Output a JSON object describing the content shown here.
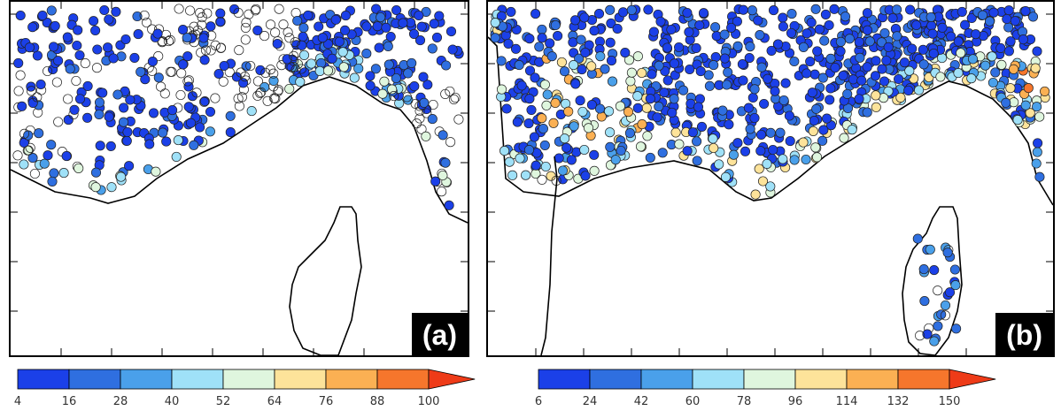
{
  "panels": [
    {
      "label": "(a)",
      "colorbar": {
        "ticks": [
          "4",
          "16",
          "28",
          "40",
          "52",
          "64",
          "76",
          "88",
          "100"
        ],
        "colors": [
          "#1b40e8",
          "#2f6fe0",
          "#4aa0ea",
          "#9fe1f8",
          "#dff6de",
          "#fde39a",
          "#fbb053",
          "#f6762c",
          "#ee3b18"
        ]
      }
    },
    {
      "label": "(b)",
      "colorbar": {
        "ticks": [
          "6",
          "24",
          "42",
          "60",
          "78",
          "96",
          "114",
          "132",
          "150"
        ],
        "colors": [
          "#1b40e8",
          "#2f6fe0",
          "#4aa0ea",
          "#9fe1f8",
          "#dff6de",
          "#fde39a",
          "#fbb053",
          "#f6762c",
          "#ee3b18"
        ]
      }
    }
  ],
  "legend": {
    "no_data_marker": "open-circle"
  }
}
